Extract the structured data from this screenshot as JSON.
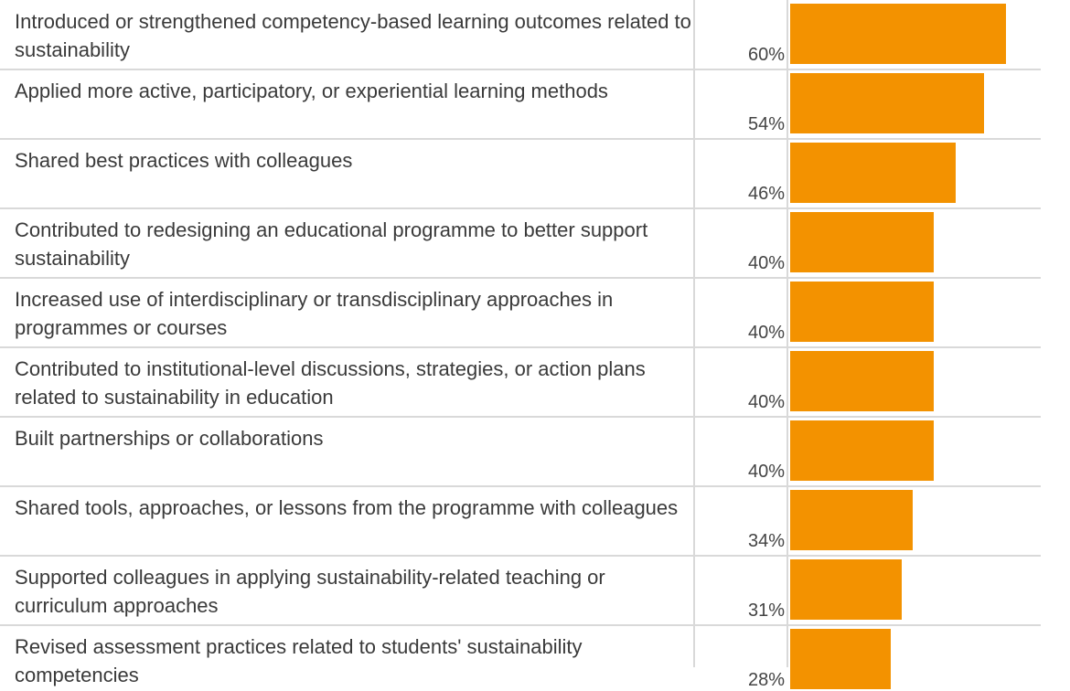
{
  "colors": {
    "bar": "#f39200",
    "grid": "#d9d9d9",
    "text": "#3a3a3a"
  },
  "chart_data": {
    "type": "bar",
    "orientation": "horizontal",
    "categories": [
      "Introduced or strengthened competency-based learning outcomes related to sustainability",
      "Applied more active, participatory, or experiential learning methods",
      "Shared best practices with colleagues",
      "Contributed to redesigning an educational programme to better support sustainability",
      "Increased use of interdisciplinary or transdisciplinary approaches in programmes or courses",
      "Contributed to institutional-level discussions, strategies, or action plans related to sustainability in education",
      "Built partnerships or collaborations",
      "Shared tools, approaches, or lessons from the programme with colleagues",
      "Supported colleagues in applying sustainability-related teaching or curriculum approaches",
      "Revised assessment practices related to students' sustainability competencies"
    ],
    "values": [
      60,
      54,
      46,
      40,
      40,
      40,
      40,
      34,
      31,
      28
    ],
    "value_labels": [
      "60%",
      "54%",
      "46%",
      "40%",
      "40%",
      "40%",
      "40%",
      "34%",
      "31%",
      "28%"
    ],
    "unit": "%",
    "xlim": [
      0,
      65
    ],
    "grid": true
  }
}
